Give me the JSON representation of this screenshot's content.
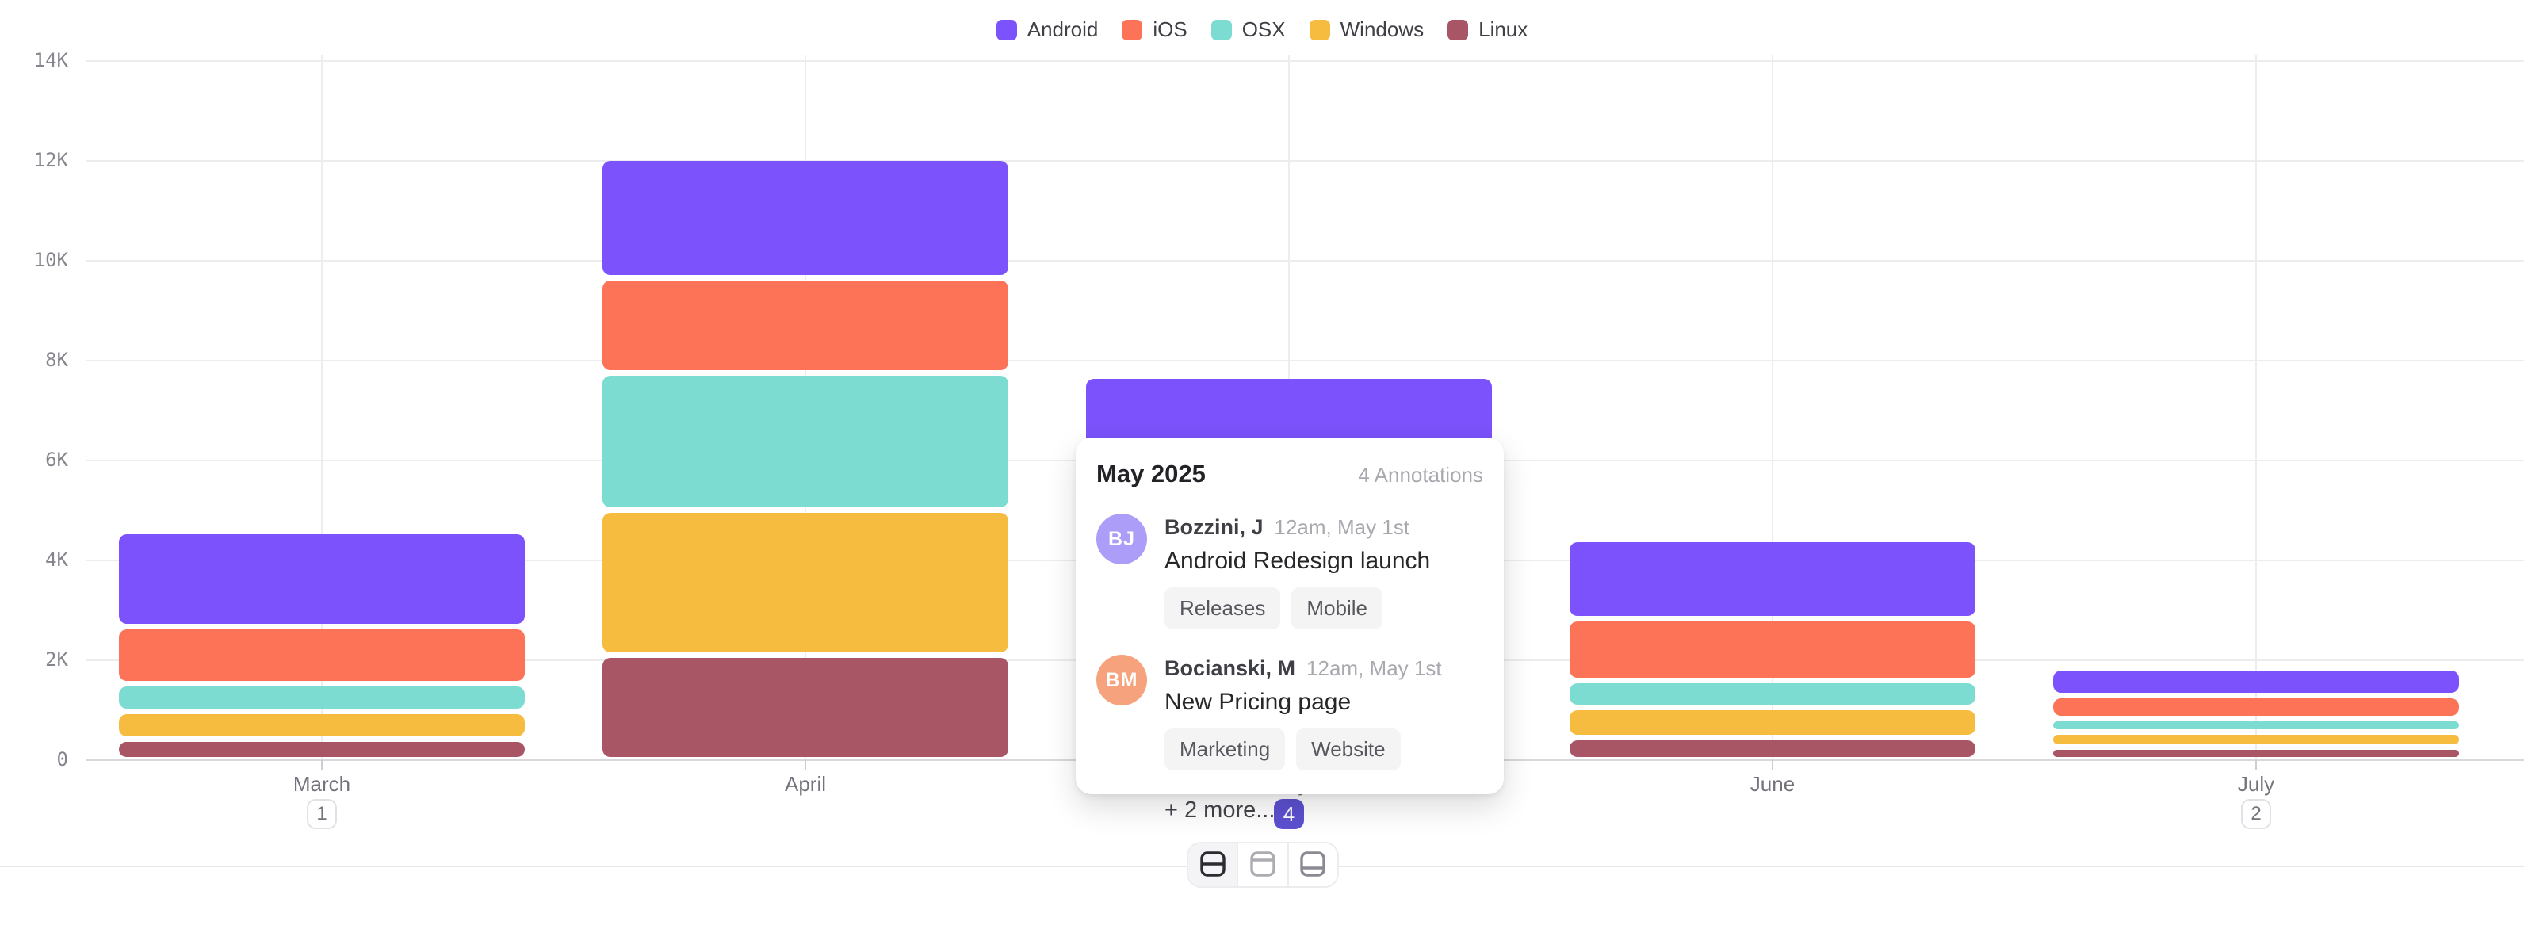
{
  "chart_data": {
    "type": "bar",
    "stacked": true,
    "title": "",
    "xlabel": "",
    "ylabel": "",
    "categories": [
      "March",
      "April",
      "May",
      "June",
      "July"
    ],
    "series": [
      {
        "name": "Android",
        "color": "#7b52fb",
        "values": [
          1900,
          2400,
          2150,
          1600,
          560
        ]
      },
      {
        "name": "iOS",
        "color": "#fc7357",
        "values": [
          1150,
          1900,
          1350,
          1230,
          450
        ]
      },
      {
        "name": "OSX",
        "color": "#7cdcd2",
        "values": [
          550,
          2750,
          1450,
          540,
          280
        ]
      },
      {
        "name": "Windows",
        "color": "#f5bc40",
        "values": [
          550,
          2900,
          1550,
          600,
          300
        ]
      },
      {
        "name": "Linux",
        "color": "#a85566",
        "values": [
          420,
          2100,
          1180,
          450,
          250
        ]
      }
    ],
    "stack_order_bottom_to_top": [
      "Linux",
      "Windows",
      "OSX",
      "iOS",
      "Android"
    ],
    "ylim": [
      0,
      14000
    ],
    "yticks": [
      {
        "value": 14000,
        "label": "14K"
      },
      {
        "value": 12000,
        "label": "12K"
      },
      {
        "value": 10000,
        "label": "10K"
      },
      {
        "value": 8000,
        "label": "8K"
      },
      {
        "value": 6000,
        "label": "6K"
      },
      {
        "value": 4000,
        "label": "4K"
      },
      {
        "value": 2000,
        "label": "2K"
      },
      {
        "value": 0,
        "label": "0"
      }
    ],
    "grid": true,
    "legend_position": "top-center",
    "annotation_badges": [
      {
        "category": "March",
        "label": "1",
        "active": false
      },
      {
        "category": "May",
        "label": "4",
        "active": true
      },
      {
        "category": "July",
        "label": "2",
        "active": false
      }
    ],
    "badge_active_color": "#5d50d0"
  },
  "tooltip": {
    "title": "May 2025",
    "count_label": "4 Annotations",
    "entries": [
      {
        "initials": "BJ",
        "avatar_color": "#ab9df8",
        "name": "Bozzini, J",
        "time": "12am, May 1st",
        "text": "Android Redesign launch",
        "tags": [
          "Releases",
          "Mobile"
        ]
      },
      {
        "initials": "BM",
        "avatar_color": "#f5a27d",
        "name": "Bocianski, M",
        "time": "12am, May 1st",
        "text": "New Pricing page",
        "tags": [
          "Marketing",
          "Website"
        ]
      }
    ],
    "more_label": "+ 2 more..."
  },
  "toolbar": {
    "view_options": [
      {
        "icon": "split-rows-icon",
        "active": true
      },
      {
        "icon": "header-row-icon",
        "active": false
      },
      {
        "icon": "footer-row-icon",
        "active": false
      }
    ]
  }
}
